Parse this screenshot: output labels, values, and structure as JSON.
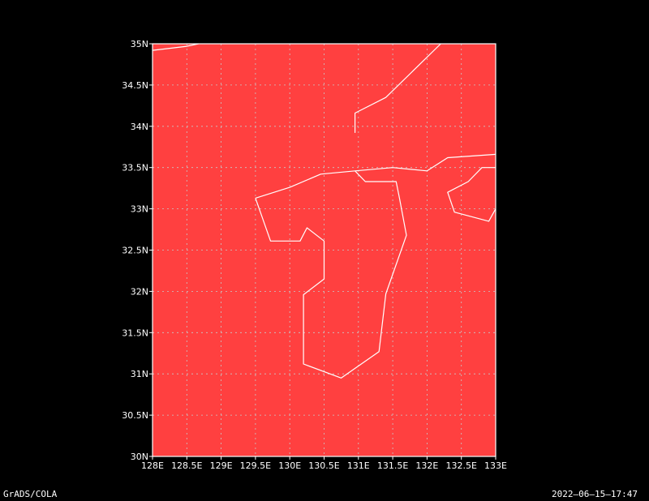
{
  "colors": {
    "background": "#000000",
    "fill": "#ff4040",
    "frame": "#ffffff",
    "coastline": "#ffffff",
    "grid": "#c8c8c8",
    "text": "#ffffff"
  },
  "map": {
    "lon_range": [
      128,
      133
    ],
    "lat_range": [
      30,
      35
    ],
    "lon_ticks": [
      128,
      128.5,
      129,
      129.5,
      130,
      130.5,
      131,
      131.5,
      132,
      132.5,
      133
    ],
    "lat_ticks": [
      30,
      30.5,
      31,
      31.5,
      32,
      32.5,
      33,
      33.5,
      34,
      34.5,
      35
    ],
    "lon_labels": [
      "128E",
      "128.5E",
      "129E",
      "129.5E",
      "130E",
      "130.5E",
      "131E",
      "131.5E",
      "132E",
      "132.5E",
      "133E"
    ],
    "lat_labels": [
      "30N",
      "30.5N",
      "31N",
      "31.5N",
      "32N",
      "32.5N",
      "33N",
      "33.5N",
      "34N",
      "34.5N",
      "35N"
    ],
    "coastlines": [
      {
        "name": "korea-coast",
        "points": [
          [
            128.0,
            34.92
          ],
          [
            128.5,
            34.97
          ],
          [
            128.67,
            35.0
          ]
        ]
      },
      {
        "name": "honshu-south-coast",
        "points": [
          [
            130.95,
            33.92
          ],
          [
            130.95,
            34.16
          ],
          [
            131.4,
            34.35
          ],
          [
            132.2,
            35.0
          ]
        ]
      },
      {
        "name": "kyushu-north-coast",
        "points": [
          [
            129.5,
            33.13
          ],
          [
            130.0,
            33.26
          ],
          [
            130.45,
            33.42
          ],
          [
            130.95,
            33.46
          ],
          [
            131.5,
            33.5
          ],
          [
            132.0,
            33.46
          ],
          [
            132.3,
            33.62
          ],
          [
            133.0,
            33.66
          ]
        ]
      },
      {
        "name": "kyushu-west-coast",
        "points": [
          [
            129.5,
            33.13
          ],
          [
            129.72,
            32.61
          ],
          [
            130.15,
            32.61
          ],
          [
            130.25,
            32.77
          ],
          [
            130.5,
            32.61
          ],
          [
            130.5,
            32.15
          ],
          [
            130.2,
            31.96
          ],
          [
            130.2,
            31.12
          ],
          [
            130.75,
            30.95
          ],
          [
            131.3,
            31.27
          ],
          [
            131.4,
            31.97
          ],
          [
            131.7,
            32.68
          ],
          [
            131.6,
            33.12
          ],
          [
            131.55,
            33.33
          ],
          [
            131.1,
            33.33
          ],
          [
            130.95,
            33.46
          ]
        ]
      },
      {
        "name": "shikoku-coast",
        "points": [
          [
            133.0,
            33.5
          ],
          [
            132.8,
            33.5
          ],
          [
            132.6,
            33.33
          ],
          [
            132.3,
            33.2
          ],
          [
            132.4,
            32.96
          ],
          [
            132.9,
            32.85
          ],
          [
            133.0,
            33.0
          ]
        ]
      }
    ]
  },
  "footer": {
    "left": "GrADS/COLA",
    "right": "2022–06–15–17:47"
  }
}
